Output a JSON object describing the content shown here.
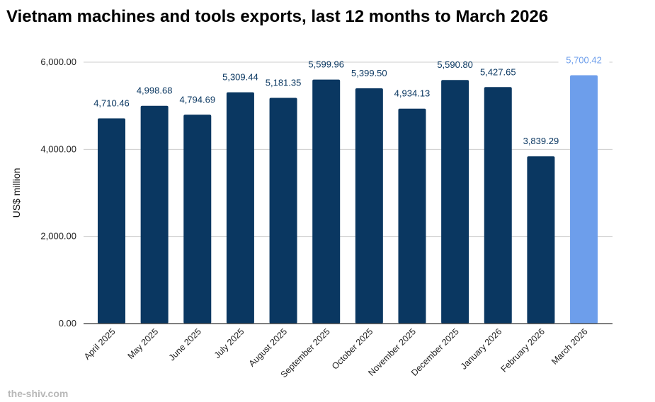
{
  "chart_data": {
    "type": "bar",
    "title": "Vietnam machines and tools exports, last 12 months to March 2026",
    "xlabel": "",
    "ylabel": "US$ million",
    "ylim": [
      0,
      6000
    ],
    "yticks": [
      "0.00",
      "2,000.00",
      "4,000.00",
      "6,000.00"
    ],
    "ytick_values": [
      0,
      2000,
      4000,
      6000
    ],
    "grid": true,
    "categories": [
      "April 2025",
      "May 2025",
      "June 2025",
      "July 2025",
      "August 2025",
      "September 2025",
      "October 2025",
      "November 2025",
      "December 2025",
      "January 2026",
      "February 2026",
      "March 2026"
    ],
    "values": [
      4710.46,
      4998.68,
      4794.69,
      5309.44,
      5181.35,
      5599.96,
      5399.5,
      4934.13,
      5590.8,
      5427.65,
      3839.29,
      5700.42
    ],
    "labels": [
      "4,710.46",
      "4,998.68",
      "4,794.69",
      "5,309.44",
      "5,181.35",
      "5,599.96",
      "5,399.50",
      "4,934.13",
      "5,590.80",
      "5,427.65",
      "3,839.29",
      "5,700.42"
    ],
    "colors": {
      "default": "#0a3761",
      "highlight": "#6d9eeb",
      "highlight_index": 11
    }
  },
  "watermark": "the-shiv.com"
}
